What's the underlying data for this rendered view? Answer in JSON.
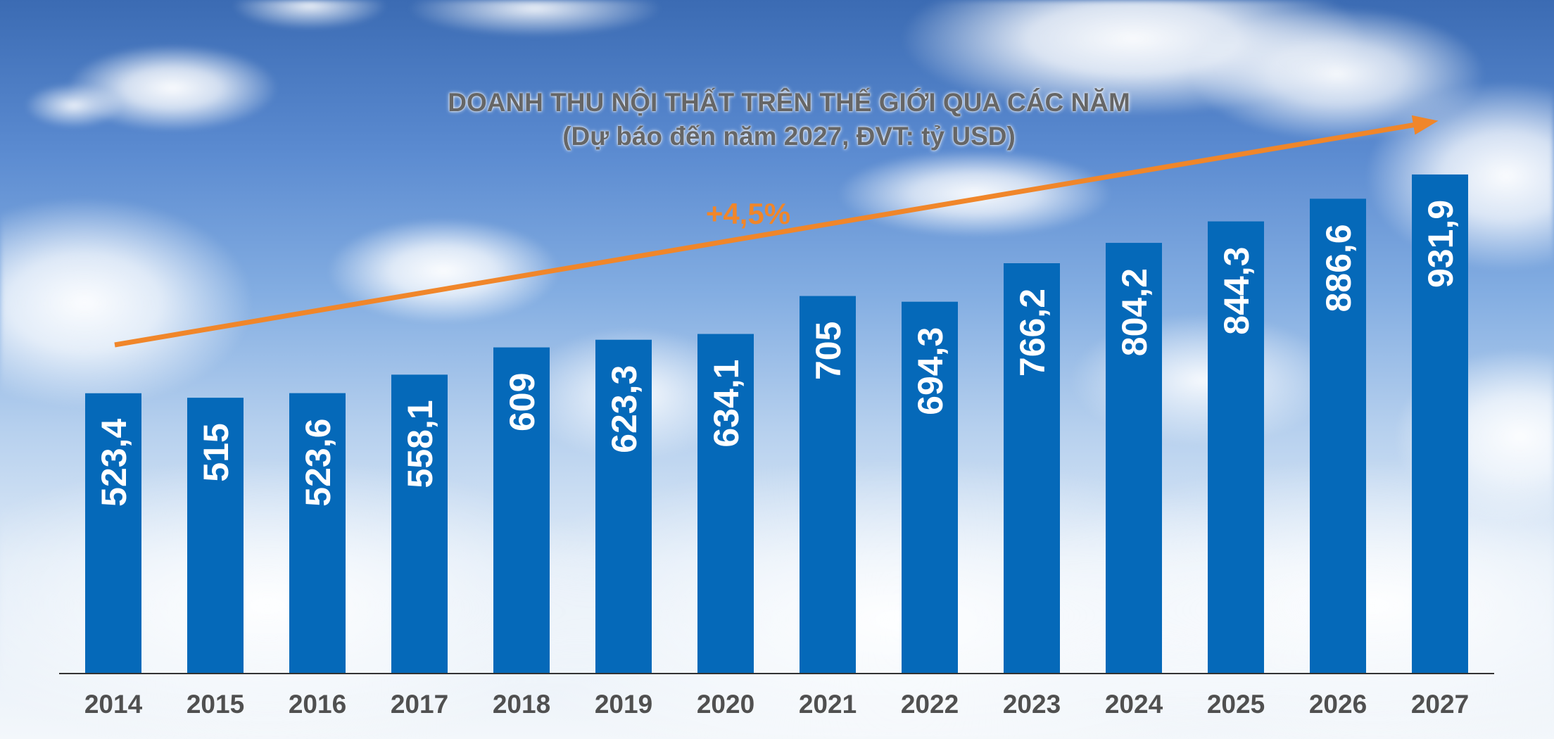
{
  "chart_data": {
    "type": "bar",
    "title": "DOANH THU NỘI THẤT TRÊN THẾ GIỚI QUA CÁC NĂM",
    "subtitle": "(Dự báo đến năm 2027, ĐVT: tỷ USD)",
    "categories": [
      "2014",
      "2015",
      "2016",
      "2017",
      "2018",
      "2019",
      "2020",
      "2021",
      "2022",
      "2023",
      "2024",
      "2025",
      "2026",
      "2027"
    ],
    "values": [
      523.4,
      515,
      523.6,
      558.1,
      609,
      623.3,
      634.1,
      705,
      694.3,
      766.2,
      804.2,
      844.3,
      886.6,
      931.9
    ],
    "value_labels": [
      "523,4",
      "515",
      "523,6",
      "558,1",
      "609",
      "623,3",
      "634,1",
      "705",
      "694,3",
      "766,2",
      "804,2",
      "844,3",
      "886,6",
      "931,9"
    ],
    "trend_label": "+4,5%",
    "ylim": [
      0,
      1100
    ],
    "grid": false,
    "legend": "none"
  },
  "colors": {
    "bar": "#0569b9",
    "value_label": "#ffffff",
    "trend_arrow": "#f0862a",
    "title": "#666666",
    "year_label": "#505050",
    "baseline": "#333333"
  }
}
